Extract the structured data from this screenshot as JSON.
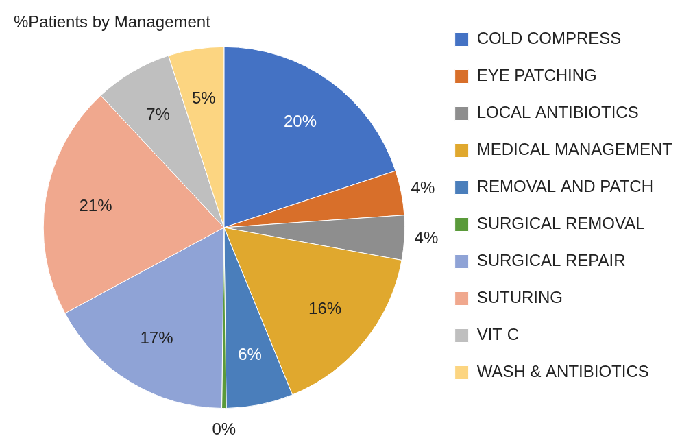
{
  "chart_data": {
    "type": "pie",
    "title": "%Patients by Management",
    "categories": [
      "COLD COMPRESS",
      "EYE PATCHING",
      "LOCAL ANTIBIOTICS",
      "MEDICAL MANAGEMENT",
      "REMOVAL AND PATCH",
      "SURGICAL REMOVAL",
      "SURGICAL REPAIR",
      "SUTURING",
      "VIT C",
      "WASH & ANTIBIOTICS"
    ],
    "values": [
      20,
      4,
      4,
      16,
      6,
      0.4,
      17,
      21,
      7,
      5
    ],
    "value_labels": [
      "20%",
      "4%",
      "4%",
      "16%",
      "6%",
      "0%",
      "17%",
      "21%",
      "7%",
      "5%"
    ],
    "colors": [
      "#4472c4",
      "#d86f2a",
      "#8e8e8e",
      "#e0a82e",
      "#4a7ebb",
      "#5a9a3a",
      "#8fa3d6",
      "#f0a88e",
      "#bfbfbf",
      "#fcd581"
    ],
    "legend": "right",
    "data_labels": true
  }
}
